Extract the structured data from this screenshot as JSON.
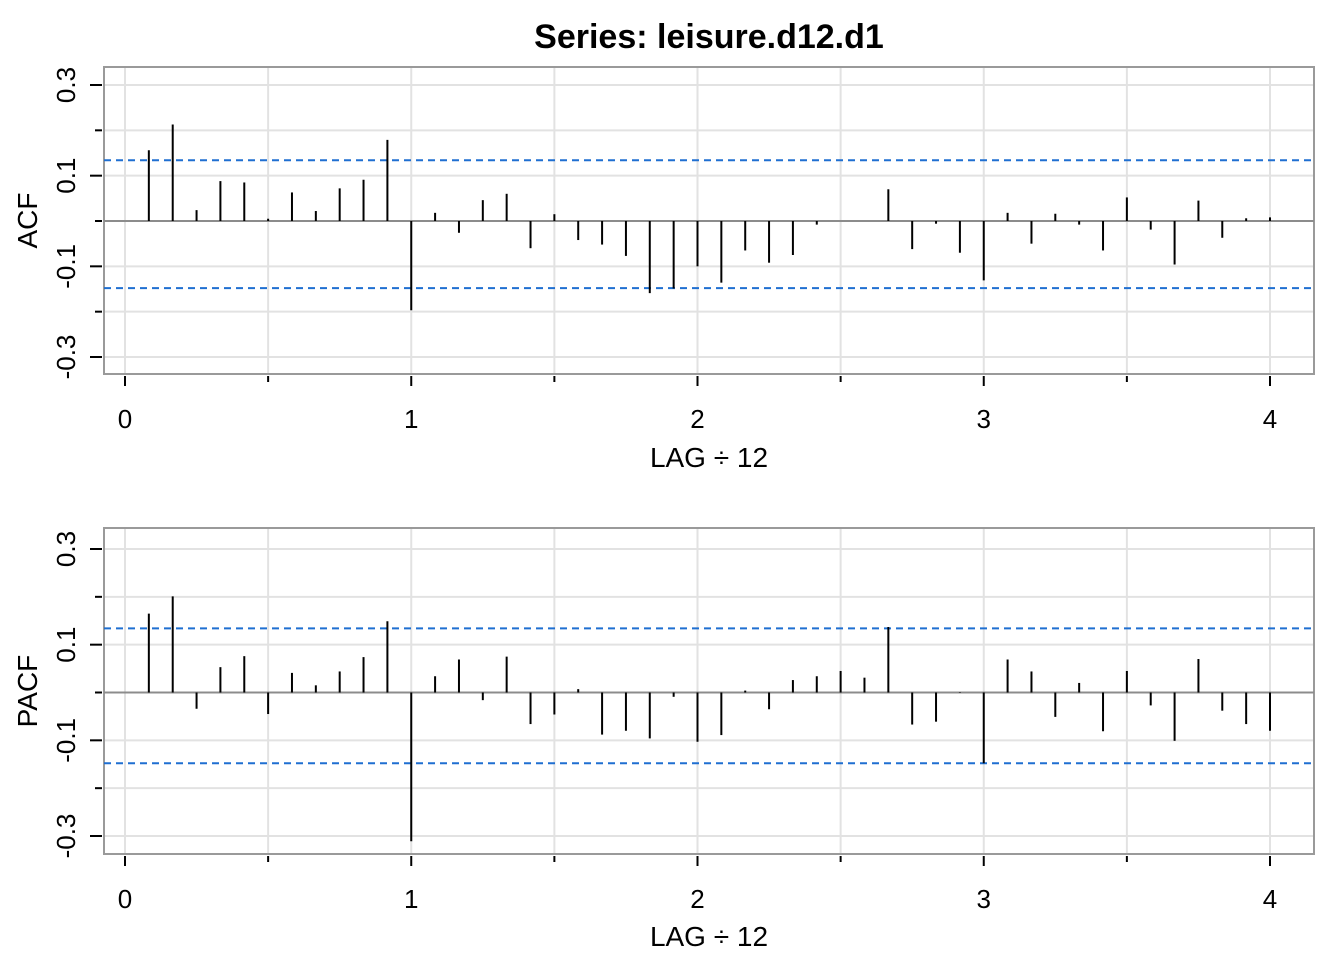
{
  "title": "Series:  leisure.d12.d1",
  "colors": {
    "confidence": "#1f6fd1",
    "grid": "#e2e2e2",
    "frame": "#9a9a9a",
    "bars": "#000000"
  },
  "chart_data": [
    {
      "type": "bar",
      "name": "acf",
      "xlabel": "LAG ÷ 12",
      "ylabel": "ACF",
      "xlim": [
        0,
        4
      ],
      "ylim": [
        -0.35,
        0.35
      ],
      "x_ticks": [
        "0",
        "1",
        "2",
        "3",
        "4"
      ],
      "y_ticks": [
        "-0.3",
        "-0.1",
        "0.1",
        "0.3"
      ],
      "confidence_band": [
        -0.148,
        0.134
      ],
      "grid": true,
      "lags": [
        0.0833,
        0.1667,
        0.25,
        0.3333,
        0.4167,
        0.5,
        0.5833,
        0.6667,
        0.75,
        0.8333,
        0.9167,
        1.0,
        1.0833,
        1.1667,
        1.25,
        1.3333,
        1.4167,
        1.5,
        1.5833,
        1.6667,
        1.75,
        1.8333,
        1.9167,
        2.0,
        2.0833,
        2.1667,
        2.25,
        2.3333,
        2.4167,
        2.5,
        2.5833,
        2.6667,
        2.75,
        2.8333,
        2.9167,
        3.0,
        3.0833,
        3.1667,
        3.25,
        3.3333,
        3.4167,
        3.5,
        3.5833,
        3.6667,
        3.75,
        3.8333,
        3.9167,
        4.0
      ],
      "values": [
        0.156,
        0.213,
        0.024,
        0.088,
        0.085,
        0.005,
        0.063,
        0.022,
        0.072,
        0.091,
        0.179,
        -0.197,
        0.018,
        -0.026,
        0.046,
        0.06,
        -0.06,
        0.015,
        -0.042,
        -0.052,
        -0.077,
        -0.159,
        -0.149,
        -0.1,
        -0.136,
        -0.065,
        -0.092,
        -0.075,
        -0.008,
        0.0,
        0.0,
        0.07,
        -0.062,
        -0.006,
        -0.07,
        -0.131,
        0.018,
        -0.05,
        0.016,
        -0.008,
        -0.065,
        0.052,
        -0.019,
        -0.096,
        0.045,
        -0.037,
        0.006,
        0.008
      ]
    },
    {
      "type": "bar",
      "name": "pacf",
      "xlabel": "LAG ÷ 12",
      "ylabel": "PACF",
      "xlim": [
        0,
        4
      ],
      "ylim": [
        -0.35,
        0.35
      ],
      "x_ticks": [
        "0",
        "1",
        "2",
        "3",
        "4"
      ],
      "y_ticks": [
        "-0.3",
        "-0.1",
        "0.1",
        "0.3"
      ],
      "confidence_band": [
        -0.148,
        0.134
      ],
      "grid": true,
      "lags": [
        0.0833,
        0.1667,
        0.25,
        0.3333,
        0.4167,
        0.5,
        0.5833,
        0.6667,
        0.75,
        0.8333,
        0.9167,
        1.0,
        1.0833,
        1.1667,
        1.25,
        1.3333,
        1.4167,
        1.5,
        1.5833,
        1.6667,
        1.75,
        1.8333,
        1.9167,
        2.0,
        2.0833,
        2.1667,
        2.25,
        2.3333,
        2.4167,
        2.5,
        2.5833,
        2.6667,
        2.75,
        2.8333,
        2.9167,
        3.0,
        3.0833,
        3.1667,
        3.25,
        3.3333,
        3.4167,
        3.5,
        3.5833,
        3.6667,
        3.75,
        3.8333,
        3.9167,
        4.0
      ],
      "values": [
        0.165,
        0.201,
        -0.034,
        0.053,
        0.076,
        -0.045,
        0.041,
        0.015,
        0.044,
        0.074,
        0.149,
        -0.311,
        0.034,
        0.069,
        -0.016,
        0.075,
        -0.066,
        -0.046,
        0.007,
        -0.088,
        -0.08,
        -0.096,
        -0.009,
        -0.103,
        -0.089,
        0.004,
        -0.035,
        0.026,
        0.034,
        0.045,
        0.031,
        0.137,
        -0.067,
        -0.061,
        0.001,
        -0.148,
        0.069,
        0.044,
        -0.051,
        0.02,
        -0.081,
        0.045,
        -0.027,
        -0.101,
        0.07,
        -0.038,
        -0.066,
        -0.08
      ]
    }
  ]
}
